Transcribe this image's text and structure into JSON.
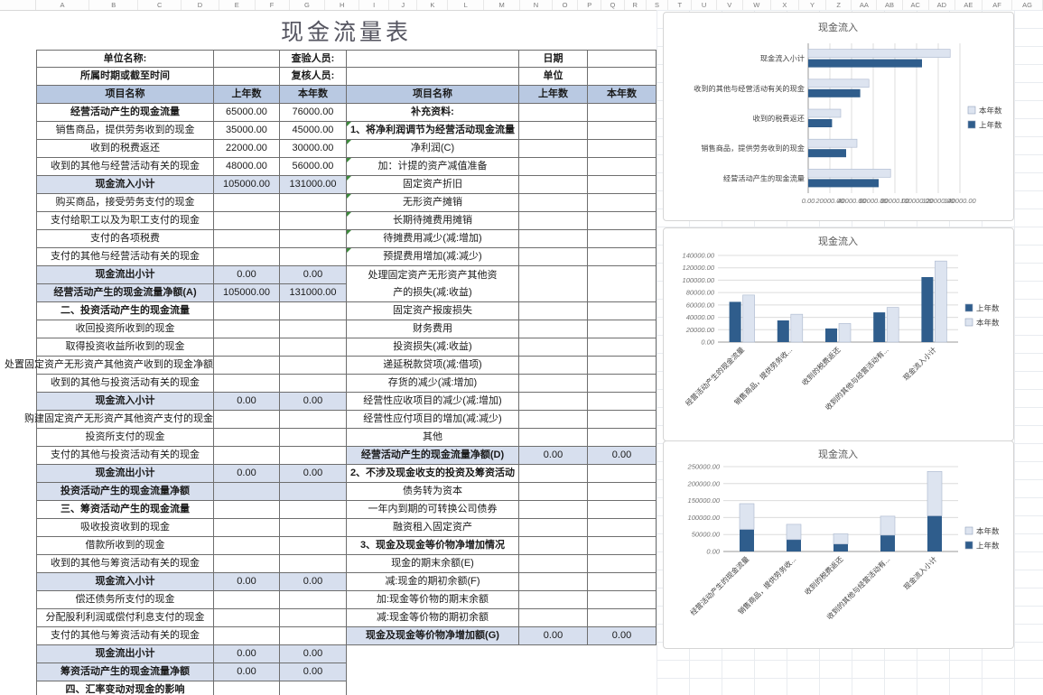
{
  "title": "现金流量表",
  "sheet": {
    "column_letters": [
      "A",
      "B",
      "C",
      "D",
      "E",
      "F",
      "G",
      "H",
      "I",
      "J",
      "K",
      "L",
      "M",
      "N",
      "O",
      "P",
      "Q",
      "R",
      "S",
      "T",
      "U",
      "V",
      "W",
      "X",
      "Y",
      "Z",
      "AA",
      "AB",
      "AC",
      "AD",
      "AE",
      "AF",
      "AG"
    ]
  },
  "info": {
    "unit_label": "单位名称:",
    "inspector_label": "查验人员:",
    "date_label": "日期",
    "period_label": "所属时期或截至时间",
    "reviewer_label": "复核人员:",
    "unit2_label": "单位"
  },
  "table": {
    "headers": [
      "项目名称",
      "上年数",
      "本年数",
      "项目名称",
      "上年数",
      "本年数"
    ],
    "rows": [
      {
        "left": {
          "t": "经营活动产生的现金流量",
          "p": "65000.00",
          "c": "76000.00",
          "b": 1
        },
        "right": {
          "t": "补充资料:",
          "b": 1
        }
      },
      {
        "left": {
          "t": "销售商品，提供劳务收到的现金",
          "p": "35000.00",
          "c": "45000.00"
        },
        "right": {
          "t": "1、将净利润调节为经营活动现金流量",
          "b": 1,
          "g": 1
        }
      },
      {
        "left": {
          "t": "收到的税费返还",
          "p": "22000.00",
          "c": "30000.00"
        },
        "right": {
          "t": "净利润(C)",
          "g": 1
        }
      },
      {
        "left": {
          "t": "收到的其他与经营活动有关的现金",
          "p": "48000.00",
          "c": "56000.00"
        },
        "right": {
          "t": "加：计提的资产减值准备",
          "g": 1
        }
      },
      {
        "left": {
          "t": "现金流入小计",
          "p": "105000.00",
          "c": "131000.00",
          "h": 1,
          "b": 1
        },
        "right": {
          "t": "固定资产折旧",
          "g": 1
        }
      },
      {
        "left": {
          "t": "购买商品，接受劳务支付的现金"
        },
        "right": {
          "t": "无形资产摊销",
          "g": 1
        }
      },
      {
        "left": {
          "t": "支付给职工以及为职工支付的现金"
        },
        "right": {
          "t": "长期待摊费用摊销",
          "g": 1
        }
      },
      {
        "left": {
          "t": "支付的各项税费"
        },
        "right": {
          "t": "待摊费用减少(减:增加)",
          "g": 1
        }
      },
      {
        "left": {
          "t": "支付的其他与经营活动有关的现金"
        },
        "right": {
          "t": "预提费用增加(减:减少)",
          "g": 1
        }
      },
      {
        "left": {
          "t": "现金流出小计",
          "p": "0.00",
          "c": "0.00",
          "h": 1,
          "b": 1
        },
        "right": {
          "t": "处理固定资产无形资产其他资",
          "nb": 1
        }
      },
      {
        "left": {
          "t": "经营活动产生的现金流量净额(A)",
          "p": "105000.00",
          "c": "131000.00",
          "h": 1,
          "b": 1
        },
        "right": {
          "t": "产的损失(减:收益)"
        }
      },
      {
        "left": {
          "t": "二、投资活动产生的现金流量",
          "b": 1
        },
        "right": {
          "t": "固定资产报废损失"
        }
      },
      {
        "left": {
          "t": "收回投资所收到的现金"
        },
        "right": {
          "t": "财务费用"
        }
      },
      {
        "left": {
          "t": "取得投资收益所收到的现金"
        },
        "right": {
          "t": "投资损失(减:收益)"
        }
      },
      {
        "left": {
          "t": "处置固定资产无形资产其他资产收到的现金净额",
          "ov": 1
        },
        "right": {
          "t": "递延税款贷项(减:借项)"
        }
      },
      {
        "left": {
          "t": "收到的其他与投资活动有关的现金"
        },
        "right": {
          "t": "存货的减少(减:增加)"
        }
      },
      {
        "left": {
          "t": "现金流入小计",
          "p": "0.00",
          "c": "0.00",
          "h": 1,
          "b": 1
        },
        "right": {
          "t": "经营性应收项目的减少(减:增加)"
        }
      },
      {
        "left": {
          "t": "购建固定资产无形资产其他资产支付的现金",
          "ov": 1
        },
        "right": {
          "t": "经营性应付项目的增加(减:减少)"
        }
      },
      {
        "left": {
          "t": "投资所支付的现金"
        },
        "right": {
          "t": "其他"
        }
      },
      {
        "left": {
          "t": "支付的其他与投资活动有关的现金"
        },
        "right": {
          "t": "经营活动产生的现金流量净额(D)",
          "p": "0.00",
          "c": "0.00",
          "h": 1,
          "b": 1
        }
      },
      {
        "left": {
          "t": "现金流出小计",
          "p": "0.00",
          "c": "0.00",
          "h": 1,
          "b": 1
        },
        "right": {
          "t": "2、不涉及现金收支的投资及筹资活动",
          "b": 1
        }
      },
      {
        "left": {
          "t": "投资活动产生的现金流量净额",
          "h": 1,
          "b": 1
        },
        "right": {
          "t": "债务转为资本"
        }
      },
      {
        "left": {
          "t": "三、筹资活动产生的现金流量",
          "b": 1
        },
        "right": {
          "t": "一年内到期的可转换公司债券"
        }
      },
      {
        "left": {
          "t": "吸收投资收到的现金"
        },
        "right": {
          "t": "融资租入固定资产"
        }
      },
      {
        "left": {
          "t": "借款所收到的现金"
        },
        "right": {
          "t": "3、现金及现金等价物净增加情况",
          "b": 1
        }
      },
      {
        "left": {
          "t": "收到的其他与筹资活动有关的现金"
        },
        "right": {
          "t": "现金的期末余额(E)"
        }
      },
      {
        "left": {
          "t": "现金流入小计",
          "p": "0.00",
          "c": "0.00",
          "h": 1,
          "b": 1
        },
        "right": {
          "t": "减:现金的期初余额(F)"
        }
      },
      {
        "left": {
          "t": "偿还债务所支付的现金"
        },
        "right": {
          "t": "加:现金等价物的期末余额"
        }
      },
      {
        "left": {
          "t": "分配股利利润或偿付利息支付的现金"
        },
        "right": {
          "t": "减:现金等价物的期初余额"
        }
      },
      {
        "left": {
          "t": "支付的其他与筹资活动有关的现金"
        },
        "right": {
          "t": "现金及现金等价物净增加额(G)",
          "p": "0.00",
          "c": "0.00",
          "h": 1,
          "b": 1
        }
      },
      {
        "left": {
          "t": "现金流出小计",
          "p": "0.00",
          "c": "0.00",
          "h": 1,
          "b": 1
        },
        "right": {
          "empty": 1
        }
      },
      {
        "left": {
          "t": "筹资活动产生的现金流量净额",
          "p": "0.00",
          "c": "0.00",
          "h": 1,
          "b": 1
        },
        "right": {
          "empty": 1
        }
      },
      {
        "left": {
          "t": "四、汇率变动对现金的影响",
          "b": 1
        },
        "right": {
          "empty": 1
        }
      }
    ]
  },
  "charts": [
    {
      "type": "barh",
      "title": "现金流入",
      "categories": [
        "经营活动产生的现金流量",
        "销售商品，提供劳务收到的现金",
        "收到的税费返还",
        "收到的其他与经营活动有关的现金",
        "现金流入小计"
      ],
      "series": [
        {
          "name": "上年数",
          "color": "#2f5d8c",
          "values": [
            65000,
            35000,
            22000,
            48000,
            105000
          ]
        },
        {
          "name": "本年数",
          "color": "#dde4f0",
          "values": [
            76000,
            45000,
            30000,
            56000,
            131000
          ]
        }
      ],
      "value_axis": {
        "max": 140000,
        "step": 20000,
        "format": "0.00"
      },
      "legend": [
        "本年数",
        "上年数"
      ]
    },
    {
      "type": "column",
      "title": "现金流入",
      "categories_display": [
        "经营活动产生的现金流量",
        "销售商品，提供劳务收...",
        "收到的税费返还",
        "收到的其他与经营活动有...",
        "现金流入小计"
      ],
      "series": [
        {
          "name": "上年数",
          "color": "#2f5d8c",
          "values": [
            65000,
            35000,
            22000,
            48000,
            105000
          ]
        },
        {
          "name": "本年数",
          "color": "#dde4f0",
          "values": [
            76000,
            45000,
            30000,
            56000,
            131000
          ]
        }
      ],
      "value_axis": {
        "max": 140000,
        "step": 20000,
        "format": "0.00"
      },
      "legend": [
        "上年数",
        "本年数"
      ]
    },
    {
      "type": "stacked-column",
      "title": "现金流入",
      "categories_display": [
        "经营活动产生的现金流量",
        "销售商品，提供劳务收...",
        "收到的税费返还",
        "收到的其他与经营活动有...",
        "现金流入小计"
      ],
      "series": [
        {
          "name": "上年数",
          "color": "#2f5d8c",
          "values": [
            65000,
            35000,
            22000,
            48000,
            105000
          ]
        },
        {
          "name": "本年数",
          "color": "#dde4f0",
          "values": [
            76000,
            45000,
            30000,
            56000,
            131000
          ]
        }
      ],
      "value_axis": {
        "max": 250000,
        "step": 50000,
        "format": "0.00"
      },
      "legend": [
        "本年数",
        "上年数"
      ]
    }
  ]
}
